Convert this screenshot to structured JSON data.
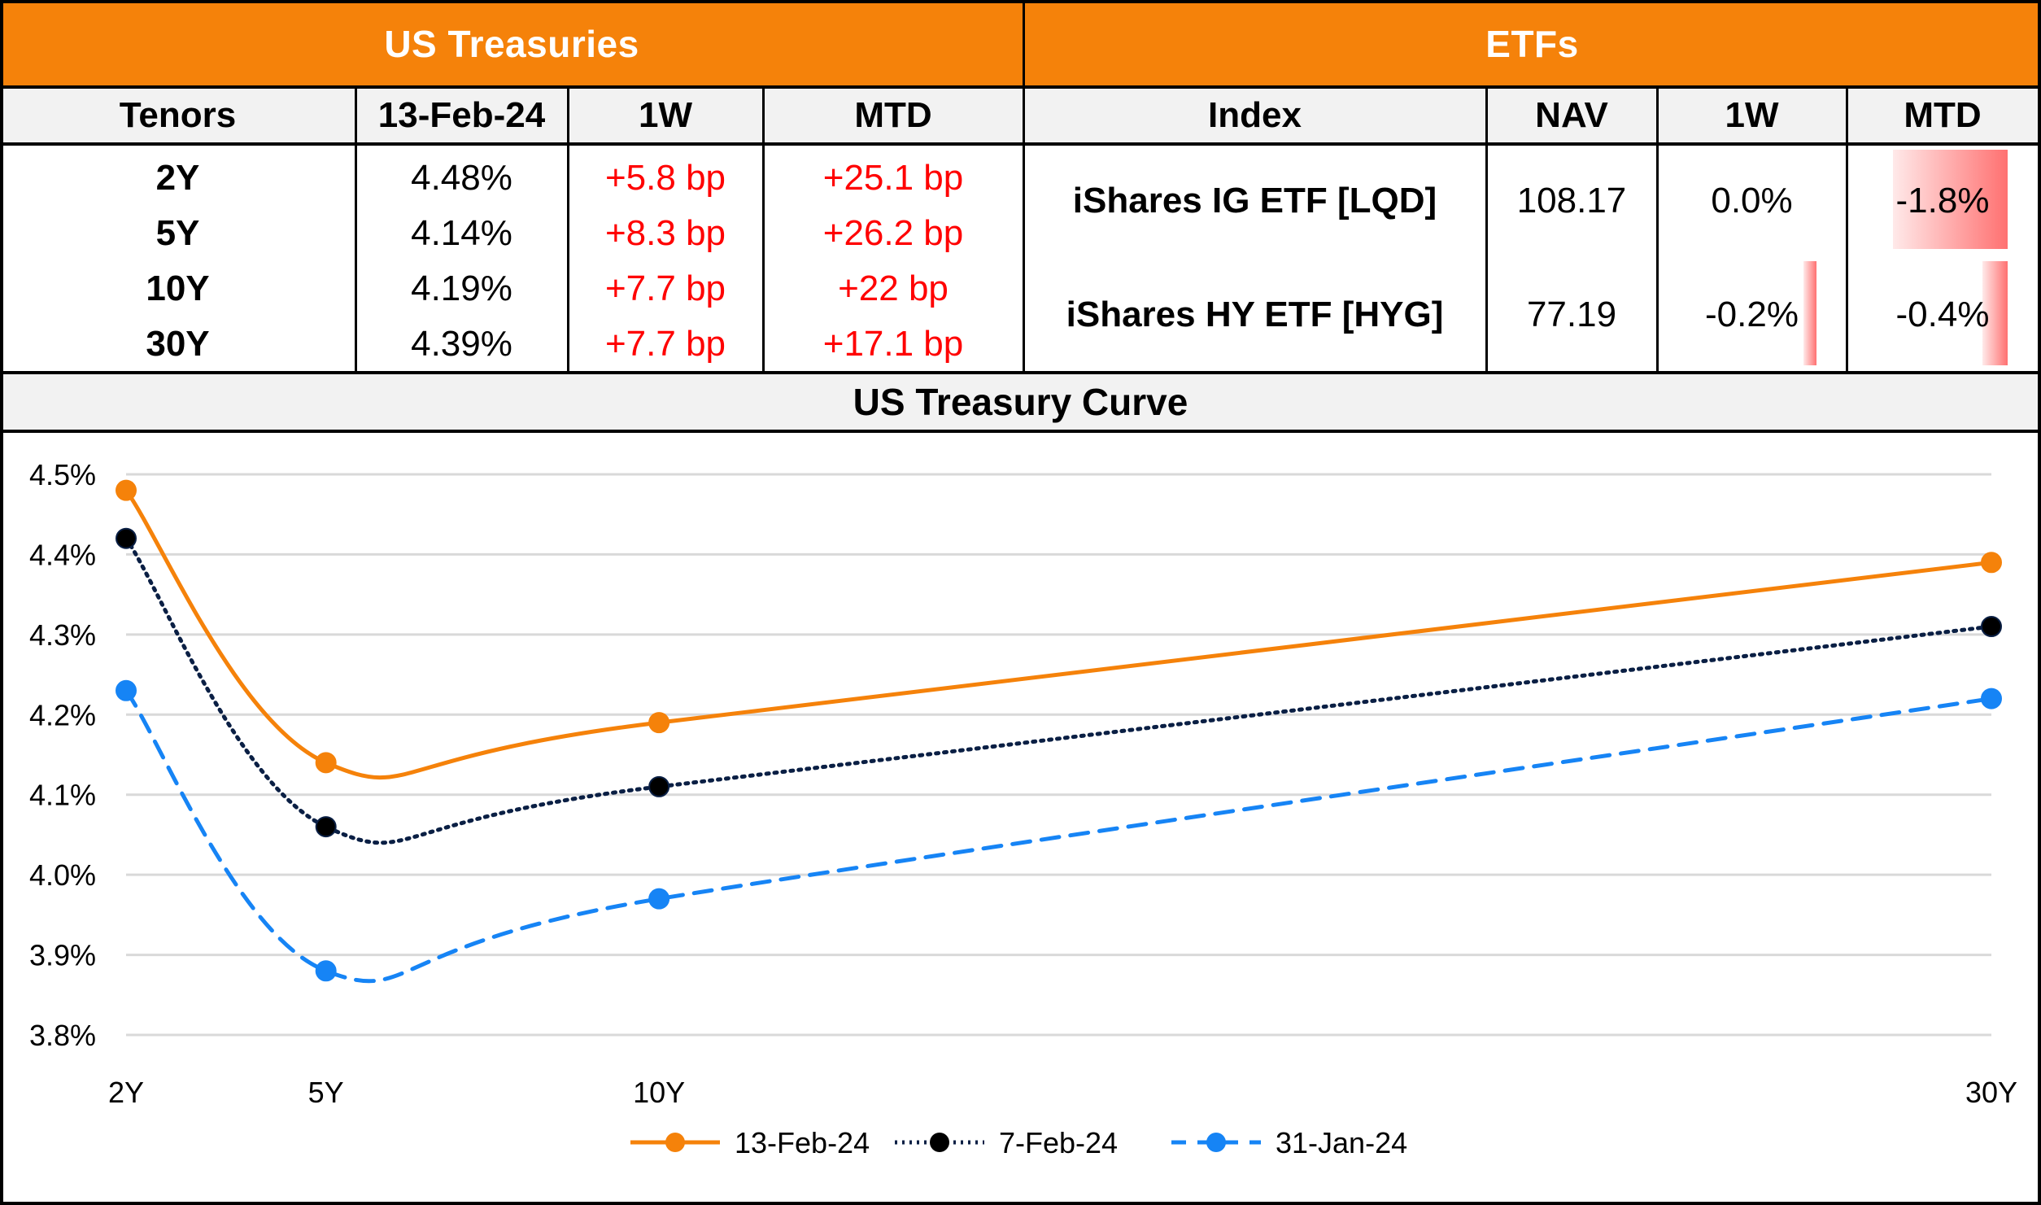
{
  "treasuries": {
    "title": "US Treasuries",
    "headers": [
      "Tenors",
      "13-Feb-24",
      "1W",
      "MTD"
    ],
    "rows": [
      {
        "tenor": "2Y",
        "yield": "4.48%",
        "w1": "+5.8 bp",
        "mtd": "+25.1 bp"
      },
      {
        "tenor": "5Y",
        "yield": "4.14%",
        "w1": "+8.3 bp",
        "mtd": "+26.2 bp"
      },
      {
        "tenor": "10Y",
        "yield": "4.19%",
        "w1": "+7.7 bp",
        "mtd": "+22 bp"
      },
      {
        "tenor": "30Y",
        "yield": "4.39%",
        "w1": "+7.7 bp",
        "mtd": "+17.1 bp"
      }
    ]
  },
  "etfs": {
    "title": "ETFs",
    "headers": [
      "Index",
      "NAV",
      "1W",
      "MTD"
    ],
    "rows": [
      {
        "name": "iShares IG ETF [LQD]",
        "nav": "108.17",
        "w1": "0.0%",
        "mtd": "-1.8%",
        "w1_value": 0.0,
        "mtd_value": -1.8
      },
      {
        "name": "iShares HY ETF [HYG]",
        "nav": "77.19",
        "w1": "-0.2%",
        "mtd": "-0.4%",
        "w1_value": -0.2,
        "mtd_value": -0.4
      }
    ],
    "databar_color": "#ff6b6b"
  },
  "chart_title": "US Treasury Curve",
  "chart_data": {
    "type": "line",
    "title": "US Treasury Curve",
    "xlabel": "",
    "ylabel": "",
    "categories": [
      "2Y",
      "5Y",
      "10Y",
      "30Y"
    ],
    "x": [
      2,
      5,
      10,
      30
    ],
    "ylim": [
      3.8,
      4.5
    ],
    "yticks": [
      "3.8%",
      "3.9%",
      "4.0%",
      "4.1%",
      "4.2%",
      "4.3%",
      "4.4%",
      "4.5%"
    ],
    "ytick_values": [
      3.8,
      3.9,
      4.0,
      4.1,
      4.2,
      4.3,
      4.4,
      4.5
    ],
    "grid": true,
    "legend_position": "bottom",
    "series": [
      {
        "name": "13-Feb-24",
        "values": [
          4.48,
          4.14,
          4.19,
          4.39
        ],
        "color": "#f5820a",
        "style": "solid"
      },
      {
        "name": "7-Feb-24",
        "values": [
          4.42,
          4.06,
          4.11,
          4.31
        ],
        "color": "#0a1f44",
        "style": "dotted"
      },
      {
        "name": "31-Jan-24",
        "values": [
          4.23,
          3.88,
          3.97,
          4.22
        ],
        "color": "#1684f5",
        "style": "dashed"
      }
    ]
  }
}
